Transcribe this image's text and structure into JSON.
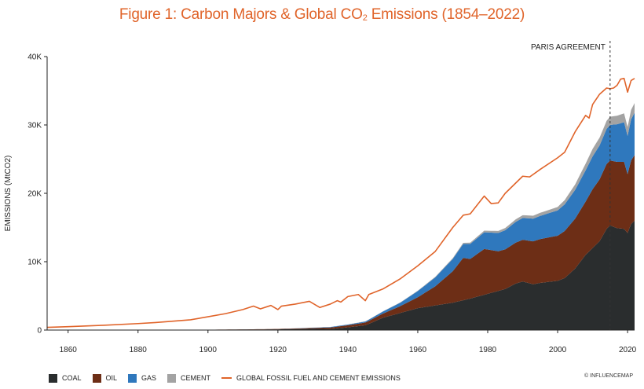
{
  "title_main": "Figure 1: Carbon Majors & Global CO",
  "title_sub": "2",
  "title_tail": " Emissions (1854–2022)",
  "credit": "© INFLUENCEMAP",
  "colors": {
    "coal": "#2a2d2e",
    "oil": "#6d2e16",
    "gas": "#2f78bd",
    "cement": "#a3a3a3",
    "global": "#e0642a"
  },
  "chart_data": {
    "type": "area",
    "title": "Figure 1: Carbon Majors & Global CO2 Emissions (1854–2022)",
    "xlabel": "",
    "ylabel": "EMISSIONS (MtCO2)",
    "xlim": [
      1854,
      2022
    ],
    "ylim": [
      0,
      40000
    ],
    "x_ticks": [
      1860,
      1880,
      1900,
      1920,
      1940,
      1960,
      1980,
      2000,
      2020
    ],
    "x_tick_labels": [
      "1860",
      "1880",
      "1900",
      "1920",
      "1940",
      "1960",
      "1980",
      "2000",
      "2020"
    ],
    "y_ticks": [
      0,
      10000,
      20000,
      30000,
      40000
    ],
    "y_tick_labels": [
      "0",
      "10K",
      "20K",
      "30K",
      "40K"
    ],
    "annotation": {
      "label": "PARIS AGREEMENT",
      "x": 2015
    },
    "stacked_series": [
      {
        "name": "COAL",
        "color": "#2a2d2e",
        "x": [
          1854,
          1870,
          1890,
          1900,
          1910,
          1920,
          1930,
          1935,
          1940,
          1945,
          1946,
          1950,
          1955,
          1960,
          1965,
          1970,
          1975,
          1980,
          1985,
          1988,
          1990,
          1993,
          1995,
          2000,
          2002,
          2005,
          2008,
          2010,
          2012,
          2014,
          2015,
          2017,
          2019,
          2020,
          2021,
          2022
        ],
        "values": [
          0,
          0,
          20,
          40,
          80,
          100,
          180,
          160,
          400,
          700,
          900,
          1800,
          2500,
          3200,
          3600,
          4000,
          4600,
          5300,
          6000,
          6800,
          7100,
          6700,
          6900,
          7200,
          7600,
          9000,
          11000,
          12000,
          13000,
          14800,
          15300,
          14900,
          14800,
          14200,
          15500,
          16000
        ]
      },
      {
        "name": "OIL",
        "color": "#6d2e16",
        "x": [
          1854,
          1900,
          1910,
          1920,
          1930,
          1940,
          1945,
          1950,
          1955,
          1960,
          1965,
          1970,
          1973,
          1975,
          1979,
          1983,
          1985,
          1990,
          1995,
          2000,
          2005,
          2008,
          2010,
          2014,
          2015,
          2017,
          2019,
          2020,
          2021,
          2022
        ],
        "values": [
          0,
          10,
          20,
          60,
          120,
          300,
          400,
          600,
          1000,
          1600,
          2800,
          4600,
          6200,
          5800,
          6700,
          5800,
          5800,
          6100,
          6400,
          6600,
          7300,
          7800,
          8600,
          9500,
          9500,
          9700,
          9800,
          8600,
          9300,
          9600
        ]
      },
      {
        "name": "GAS",
        "color": "#2f78bd",
        "x": [
          1854,
          1920,
          1930,
          1940,
          1945,
          1950,
          1955,
          1960,
          1965,
          1970,
          1975,
          1980,
          1985,
          1990,
          1995,
          2000,
          2005,
          2010,
          2015,
          2019,
          2020,
          2021,
          2022
        ],
        "values": [
          0,
          0,
          40,
          100,
          150,
          300,
          500,
          900,
          1300,
          1800,
          2200,
          2500,
          2800,
          3200,
          3400,
          3700,
          4200,
          4800,
          5200,
          5800,
          5600,
          6000,
          6200
        ]
      },
      {
        "name": "CEMENT",
        "color": "#a3a3a3",
        "x": [
          1854,
          1920,
          1930,
          1950,
          1960,
          1970,
          1980,
          1990,
          2000,
          2005,
          2010,
          2015,
          2019,
          2020,
          2021,
          2022
        ],
        "values": [
          0,
          0,
          20,
          30,
          60,
          120,
          250,
          400,
          500,
          800,
          1100,
          1200,
          1300,
          1300,
          1400,
          1400
        ]
      }
    ],
    "line_series": [
      {
        "name": "GLOBAL FOSSIL FUEL AND CEMENT EMISSIONS",
        "color": "#e0642a",
        "x": [
          1854,
          1860,
          1870,
          1880,
          1885,
          1890,
          1895,
          1900,
          1905,
          1910,
          1913,
          1915,
          1918,
          1920,
          1921,
          1925,
          1929,
          1932,
          1935,
          1937,
          1938,
          1940,
          1943,
          1945,
          1946,
          1950,
          1955,
          1960,
          1965,
          1970,
          1973,
          1975,
          1979,
          1981,
          1983,
          1985,
          1990,
          1992,
          1995,
          2000,
          2002,
          2005,
          2008,
          2009,
          2010,
          2012,
          2014,
          2015,
          2016,
          2017,
          2018,
          2019,
          2020,
          2021,
          2022
        ],
        "values": [
          400,
          500,
          700,
          950,
          1100,
          1300,
          1500,
          1950,
          2400,
          3000,
          3500,
          3100,
          3600,
          3000,
          3500,
          3800,
          4200,
          3300,
          3800,
          4300,
          4100,
          4900,
          5200,
          4300,
          5200,
          6000,
          7500,
          9400,
          11500,
          15000,
          16800,
          17000,
          19600,
          18500,
          18600,
          20000,
          22500,
          22400,
          23500,
          25200,
          26000,
          29000,
          31400,
          31000,
          33000,
          34500,
          35400,
          35300,
          35400,
          35800,
          36700,
          36800,
          34800,
          36500,
          36800
        ]
      }
    ],
    "legend": [
      {
        "label": "COAL",
        "kind": "swatch",
        "color": "#2a2d2e"
      },
      {
        "label": "OIL",
        "kind": "swatch",
        "color": "#6d2e16"
      },
      {
        "label": "GAS",
        "kind": "swatch",
        "color": "#2f78bd"
      },
      {
        "label": "CEMENT",
        "kind": "swatch",
        "color": "#a3a3a3"
      },
      {
        "label": "GLOBAL FOSSIL FUEL AND CEMENT EMISSIONS",
        "kind": "line",
        "color": "#e0642a"
      }
    ]
  }
}
